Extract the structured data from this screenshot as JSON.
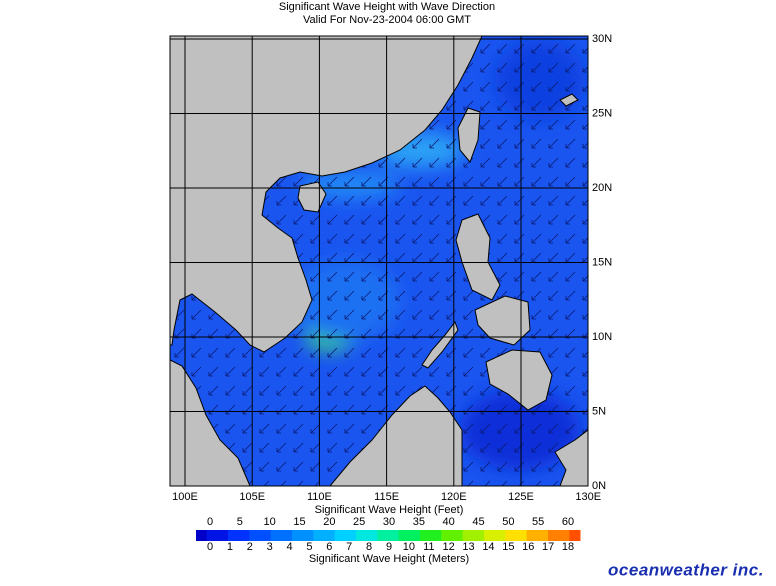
{
  "title": "Significant Wave Height with Wave Direction",
  "subtitle": "Valid For Nov-23-2004 06:00 GMT",
  "map": {
    "longitude_labels": [
      "100E",
      "105E",
      "110E",
      "115E",
      "120E",
      "125E",
      "130E"
    ],
    "latitude_labels": [
      "0N",
      "5N",
      "10N",
      "15N",
      "20N",
      "25N",
      "30N"
    ]
  },
  "legend": {
    "feet_title": "Significant Wave Height (Feet)",
    "feet_labels": [
      0,
      5,
      10,
      15,
      20,
      25,
      30,
      35,
      40,
      45,
      50,
      55,
      60
    ],
    "meters_title": "Significant Wave Height (Meters)",
    "meters_labels": [
      0,
      1,
      2,
      3,
      4,
      5,
      6,
      7,
      8,
      9,
      10,
      11,
      12,
      13,
      14,
      15,
      16,
      17,
      18
    ]
  },
  "logo": "oceanweather inc."
}
